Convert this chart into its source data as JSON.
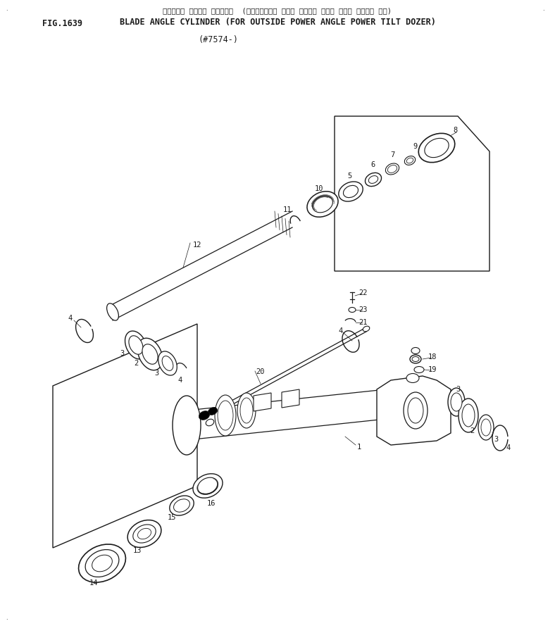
{
  "title_line1": "ブレード・ アングル シリンダー  (アウトサイド・ パワー アングル パワー チルト ドーザー ヨウ)",
  "title_line2": "BLADE ANGLE CYLINDER (FOR OUTSIDE POWER ANGLE POWER TILT DOZER)",
  "fig_number": "FIG.1639",
  "serial": "(#7574-)",
  "bg_color": "#ffffff",
  "line_color": "#1a1a1a",
  "text_color": "#1a1a1a",
  "font_size_title": 7.5,
  "font_size_fig": 8.5,
  "font_size_label": 7.5
}
